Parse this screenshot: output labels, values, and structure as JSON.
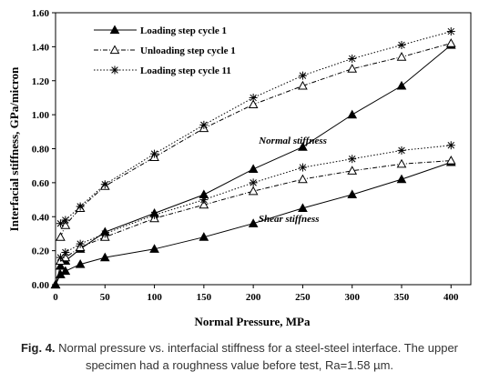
{
  "chart_data": {
    "type": "line",
    "xlabel": "Normal Pressure, MPa",
    "ylabel": "Interfacial stiffness, GPa/micron",
    "xlim": [
      0,
      420
    ],
    "ylim": [
      0,
      1.6
    ],
    "xticks": [
      0,
      50,
      100,
      150,
      200,
      250,
      300,
      350,
      400
    ],
    "yticks": [
      "0.00",
      "0.20",
      "0.40",
      "0.60",
      "0.80",
      "1.00",
      "1.20",
      "1.40",
      "1.60"
    ],
    "grid": false,
    "legend_position": "top-left",
    "series": [
      {
        "name": "Loading step cycle 1",
        "marker": "triangle-filled",
        "line": "solid",
        "curves": [
          {
            "x": [
              0,
              5,
              10,
              25,
              50,
              100,
              150,
              200,
              250,
              300,
              350,
              400
            ],
            "y": [
              0.0,
              0.11,
              0.14,
              0.21,
              0.31,
              0.42,
              0.53,
              0.68,
              0.81,
              1.0,
              1.17,
              1.41
            ]
          },
          {
            "x": [
              0,
              5,
              10,
              25,
              50,
              100,
              150,
              200,
              250,
              300,
              350,
              400
            ],
            "y": [
              0.0,
              0.06,
              0.08,
              0.12,
              0.16,
              0.21,
              0.28,
              0.36,
              0.45,
              0.53,
              0.62,
              0.72
            ]
          }
        ]
      },
      {
        "name": "Unloading step cycle 1",
        "marker": "triangle-open",
        "line": "dash-dot",
        "curves": [
          {
            "x": [
              5,
              10,
              25,
              50,
              100,
              150,
              200,
              250,
              300,
              350,
              400
            ],
            "y": [
              0.28,
              0.35,
              0.45,
              0.58,
              0.75,
              0.92,
              1.06,
              1.17,
              1.27,
              1.34,
              1.42
            ]
          },
          {
            "x": [
              5,
              10,
              25,
              50,
              100,
              150,
              200,
              250,
              300,
              350,
              400
            ],
            "y": [
              0.14,
              0.16,
              0.22,
              0.28,
              0.39,
              0.47,
              0.55,
              0.62,
              0.67,
              0.71,
              0.73
            ]
          }
        ]
      },
      {
        "name": "Loading step cycle 11",
        "marker": "star",
        "line": "dotted",
        "curves": [
          {
            "x": [
              5,
              10,
              25,
              50,
              100,
              150,
              200,
              250,
              300,
              350,
              400
            ],
            "y": [
              0.36,
              0.38,
              0.46,
              0.59,
              0.77,
              0.94,
              1.1,
              1.23,
              1.33,
              1.41,
              1.49
            ]
          },
          {
            "x": [
              5,
              10,
              25,
              50,
              100,
              150,
              200,
              250,
              300,
              350,
              400
            ],
            "y": [
              0.16,
              0.19,
              0.24,
              0.3,
              0.41,
              0.5,
              0.6,
              0.69,
              0.74,
              0.79,
              0.82
            ]
          }
        ]
      }
    ],
    "annotations": [
      {
        "text": "Normal stiffness",
        "x": 240,
        "y": 0.83
      },
      {
        "text": "Shear stiffness",
        "x": 236,
        "y": 0.37
      }
    ]
  },
  "caption": {
    "label": "Fig. 4.",
    "text": "Normal pressure vs. interfacial stiffness for a steel-steel interface. The upper specimen had a roughness value before test, Ra=1.58 µm."
  }
}
